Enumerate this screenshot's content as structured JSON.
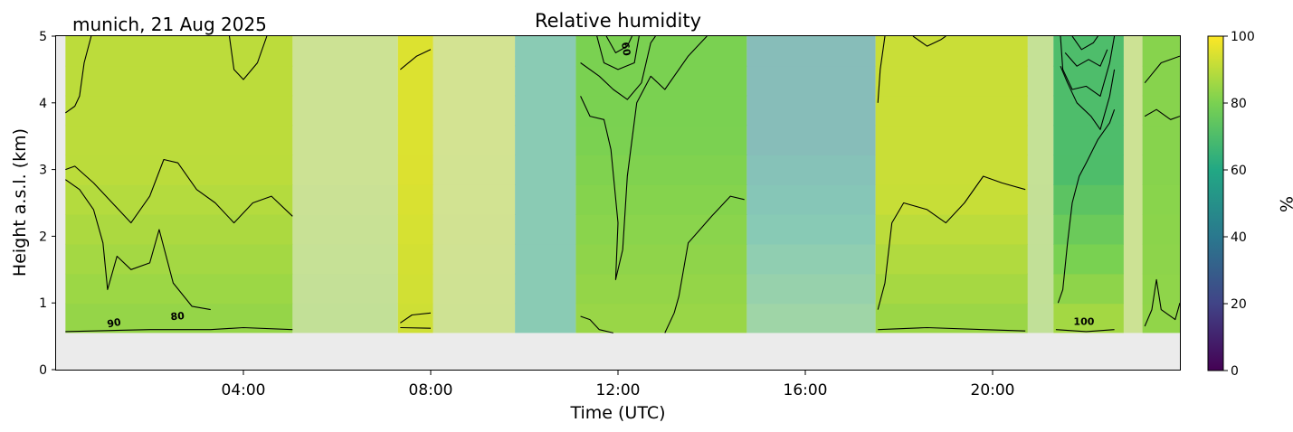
{
  "header": {
    "location_date": "munich, 21 Aug 2025"
  },
  "chart_data": {
    "type": "heatmap",
    "title": "Relative humidity",
    "xlabel": "Time (UTC)",
    "ylabel": "Height a.s.l. (km)",
    "xlim_hours": [
      0,
      24
    ],
    "ylim": [
      0,
      5
    ],
    "x_ticks": [
      {
        "hour": 4,
        "label": "04:00"
      },
      {
        "hour": 8,
        "label": "08:00"
      },
      {
        "hour": 12,
        "label": "12:00"
      },
      {
        "hour": 16,
        "label": "16:00"
      },
      {
        "hour": 20,
        "label": "20:00"
      }
    ],
    "y_ticks": [
      0,
      1,
      2,
      3,
      4,
      5
    ],
    "colorbar": {
      "label": "%",
      "min": 0,
      "max": 100,
      "ticks": [
        0,
        20,
        40,
        60,
        80,
        100
      ],
      "colormap": "viridis",
      "stops": [
        "#440154",
        "#414487",
        "#2a788e",
        "#22a884",
        "#7ad151",
        "#fde725"
      ]
    },
    "no_data_color": "#ebebeb",
    "data_bottom_km": 0.55,
    "segments": [
      {
        "start": 0.2,
        "end": 5.05,
        "mode": "solid",
        "base": 82,
        "upper": 90,
        "upper_km": 3.0
      },
      {
        "start": 5.05,
        "end": 7.3,
        "mode": "faded",
        "base": 84,
        "upper": 88,
        "upper_km": 3.0
      },
      {
        "start": 7.3,
        "end": 8.05,
        "mode": "solid",
        "base": 92,
        "upper": 95,
        "upper_km": 3.0
      },
      {
        "start": 8.05,
        "end": 9.8,
        "mode": "faded",
        "base": 88,
        "upper": 90,
        "upper_km": 3.0
      },
      {
        "start": 9.8,
        "end": 11.1,
        "mode": "faded",
        "base": 62,
        "upper": 62,
        "upper_km": 3.0
      },
      {
        "start": 11.1,
        "end": 14.75,
        "mode": "solid",
        "base": 86,
        "upper": 80,
        "upper_km": 3.5
      },
      {
        "start": 14.75,
        "end": 17.5,
        "mode": "faded",
        "base": 78,
        "upper": 50,
        "upper_km": 3.5
      },
      {
        "start": 17.5,
        "end": 20.75,
        "mode": "solid",
        "base": 82,
        "upper": 92,
        "upper_km": 2.6
      },
      {
        "start": 20.75,
        "end": 21.3,
        "mode": "faded",
        "base": 84,
        "upper": 86,
        "upper_km": 3.0
      },
      {
        "start": 21.3,
        "end": 22.8,
        "mode": "solid",
        "base": 92,
        "upper": 70,
        "upper_km": 3.0
      },
      {
        "start": 22.8,
        "end": 23.2,
        "mode": "faded",
        "base": 88,
        "upper": 88,
        "upper_km": 3.0
      },
      {
        "start": 23.2,
        "end": 24.0,
        "mode": "solid",
        "base": 84,
        "upper": 82,
        "upper_km": 3.0
      }
    ],
    "contour_labels": [
      {
        "text": "90",
        "hour": 1.25,
        "km": 0.65,
        "rotate": -10
      },
      {
        "text": "80",
        "hour": 2.6,
        "km": 0.75,
        "rotate": -5
      },
      {
        "text": "60",
        "hour": 12.1,
        "km": 4.8,
        "rotate": 80
      },
      {
        "text": "100",
        "hour": 21.95,
        "km": 0.67,
        "rotate": 0
      }
    ],
    "contours": [
      {
        "km": [
          [
            0.2,
            0.57
          ],
          [
            2.0,
            0.6
          ],
          [
            3.3,
            0.6
          ],
          [
            4.0,
            0.63
          ],
          [
            5.05,
            0.6
          ]
        ]
      },
      {
        "km": [
          [
            0.2,
            3.0
          ],
          [
            0.4,
            3.05
          ],
          [
            0.8,
            2.8
          ],
          [
            1.2,
            2.5
          ],
          [
            1.6,
            2.2
          ],
          [
            2.0,
            2.6
          ],
          [
            2.3,
            3.15
          ],
          [
            2.6,
            3.1
          ],
          [
            3.0,
            2.7
          ],
          [
            3.4,
            2.5
          ],
          [
            3.8,
            2.2
          ],
          [
            4.2,
            2.5
          ],
          [
            4.6,
            2.6
          ],
          [
            5.05,
            2.3
          ]
        ]
      },
      {
        "km": [
          [
            0.2,
            2.85
          ],
          [
            0.5,
            2.7
          ],
          [
            0.8,
            2.4
          ],
          [
            1.0,
            1.9
          ],
          [
            1.1,
            1.2
          ],
          [
            1.3,
            1.7
          ],
          [
            1.6,
            1.5
          ],
          [
            2.0,
            1.6
          ],
          [
            2.2,
            2.1
          ],
          [
            2.5,
            1.3
          ],
          [
            2.9,
            0.95
          ],
          [
            3.3,
            0.9
          ]
        ]
      },
      {
        "km": [
          [
            0.2,
            3.85
          ],
          [
            0.4,
            3.95
          ],
          [
            0.5,
            4.1
          ],
          [
            0.6,
            4.6
          ],
          [
            0.75,
            5.0
          ]
        ]
      },
      {
        "km": [
          [
            3.7,
            5.0
          ],
          [
            3.8,
            4.5
          ],
          [
            4.0,
            4.35
          ],
          [
            4.3,
            4.6
          ],
          [
            4.5,
            5.0
          ]
        ]
      },
      {
        "km": [
          [
            7.35,
            4.5
          ],
          [
            7.7,
            4.7
          ],
          [
            8.0,
            4.8
          ]
        ]
      },
      {
        "km": [
          [
            7.35,
            0.7
          ],
          [
            7.6,
            0.82
          ],
          [
            8.0,
            0.85
          ]
        ]
      },
      {
        "km": [
          [
            7.35,
            0.63
          ],
          [
            8.0,
            0.62
          ]
        ]
      },
      {
        "km": [
          [
            11.2,
            4.1
          ],
          [
            11.4,
            3.8
          ],
          [
            11.7,
            3.75
          ],
          [
            11.85,
            3.3
          ],
          [
            12.0,
            2.2
          ],
          [
            11.95,
            1.35
          ],
          [
            12.1,
            1.8
          ],
          [
            12.2,
            2.9
          ],
          [
            12.4,
            4.0
          ],
          [
            12.7,
            4.4
          ],
          [
            13.0,
            4.2
          ],
          [
            13.5,
            4.7
          ],
          [
            13.9,
            5.0
          ]
        ]
      },
      {
        "km": [
          [
            11.2,
            4.6
          ],
          [
            11.6,
            4.4
          ],
          [
            11.9,
            4.2
          ],
          [
            12.2,
            4.05
          ],
          [
            12.5,
            4.3
          ],
          [
            12.7,
            4.9
          ],
          [
            12.8,
            5.0
          ]
        ]
      },
      {
        "km": [
          [
            11.55,
            5.0
          ],
          [
            11.7,
            4.6
          ],
          [
            12.0,
            4.5
          ],
          [
            12.35,
            4.6
          ],
          [
            12.45,
            5.0
          ]
        ]
      },
      {
        "km": [
          [
            11.75,
            5.0
          ],
          [
            11.95,
            4.75
          ],
          [
            12.2,
            4.85
          ],
          [
            12.3,
            5.0
          ]
        ]
      },
      {
        "km": [
          [
            11.2,
            0.8
          ],
          [
            11.4,
            0.75
          ],
          [
            11.6,
            0.6
          ],
          [
            11.9,
            0.55
          ]
        ]
      },
      {
        "km": [
          [
            13.0,
            0.55
          ],
          [
            13.2,
            0.85
          ],
          [
            13.3,
            1.1
          ],
          [
            13.5,
            1.9
          ],
          [
            14.0,
            2.3
          ],
          [
            14.4,
            2.6
          ],
          [
            14.7,
            2.55
          ]
        ]
      },
      {
        "km": [
          [
            17.55,
            4.0
          ],
          [
            17.6,
            4.5
          ],
          [
            17.7,
            5.0
          ]
        ]
      },
      {
        "km": [
          [
            17.55,
            0.9
          ],
          [
            17.7,
            1.3
          ],
          [
            17.85,
            2.2
          ],
          [
            18.1,
            2.5
          ],
          [
            18.6,
            2.4
          ],
          [
            19.0,
            2.2
          ],
          [
            19.4,
            2.5
          ],
          [
            19.8,
            2.9
          ],
          [
            20.2,
            2.8
          ],
          [
            20.7,
            2.7
          ]
        ]
      },
      {
        "km": [
          [
            17.55,
            0.6
          ],
          [
            18.6,
            0.63
          ],
          [
            19.8,
            0.6
          ],
          [
            20.7,
            0.58
          ]
        ]
      },
      {
        "km": [
          [
            18.3,
            5.0
          ],
          [
            18.6,
            4.85
          ],
          [
            18.9,
            4.95
          ],
          [
            19.0,
            5.0
          ]
        ]
      },
      {
        "km": [
          [
            21.45,
            5.0
          ],
          [
            21.5,
            4.5
          ],
          [
            21.7,
            4.2
          ],
          [
            22.0,
            4.25
          ],
          [
            22.3,
            4.1
          ],
          [
            22.5,
            4.6
          ],
          [
            22.6,
            5.0
          ]
        ]
      },
      {
        "km": [
          [
            21.45,
            4.55
          ],
          [
            21.6,
            4.3
          ],
          [
            21.8,
            4.0
          ],
          [
            22.1,
            3.8
          ],
          [
            22.3,
            3.6
          ],
          [
            22.5,
            4.1
          ],
          [
            22.6,
            4.5
          ]
        ]
      },
      {
        "km": [
          [
            21.55,
            4.75
          ],
          [
            21.8,
            4.55
          ],
          [
            22.05,
            4.65
          ],
          [
            22.3,
            4.55
          ],
          [
            22.45,
            4.8
          ]
        ]
      },
      {
        "km": [
          [
            21.7,
            5.0
          ],
          [
            21.9,
            4.8
          ],
          [
            22.15,
            4.9
          ],
          [
            22.25,
            5.0
          ]
        ]
      },
      {
        "km": [
          [
            21.4,
            1.0
          ],
          [
            21.5,
            1.2
          ],
          [
            21.6,
            1.9
          ],
          [
            21.7,
            2.5
          ],
          [
            21.85,
            2.9
          ],
          [
            22.0,
            3.1
          ],
          [
            22.25,
            3.45
          ],
          [
            22.5,
            3.7
          ],
          [
            22.6,
            3.9
          ]
        ]
      },
      {
        "km": [
          [
            21.35,
            0.6
          ],
          [
            22.0,
            0.57
          ],
          [
            22.6,
            0.6
          ]
        ]
      },
      {
        "km": [
          [
            23.25,
            3.8
          ],
          [
            23.5,
            3.9
          ],
          [
            23.8,
            3.75
          ],
          [
            24.0,
            3.8
          ]
        ]
      },
      {
        "km": [
          [
            23.25,
            4.3
          ],
          [
            23.6,
            4.6
          ],
          [
            24.0,
            4.7
          ]
        ]
      },
      {
        "km": [
          [
            23.25,
            0.65
          ],
          [
            23.4,
            0.9
          ],
          [
            23.5,
            1.35
          ],
          [
            23.6,
            0.9
          ],
          [
            23.9,
            0.75
          ],
          [
            24.0,
            1.0
          ]
        ]
      }
    ]
  }
}
